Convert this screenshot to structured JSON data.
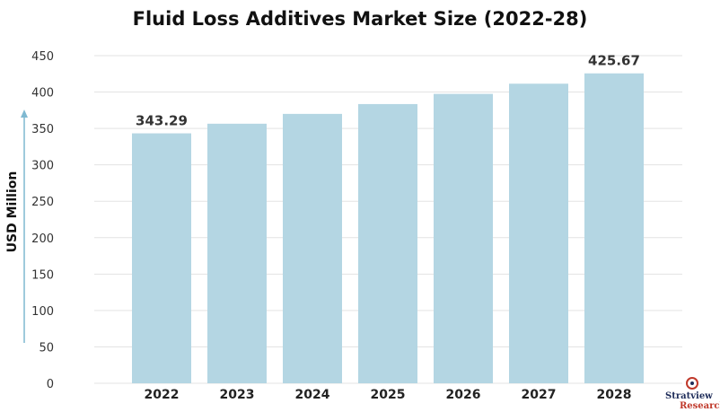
{
  "chart_data": {
    "type": "bar",
    "title": "Fluid Loss Additives Market Size (2022-28)",
    "xlabel": "",
    "ylabel": "USD Million",
    "categories": [
      "2022",
      "2023",
      "2024",
      "2025",
      "2026",
      "2027",
      "2028"
    ],
    "values": [
      343.29,
      356.5,
      370.0,
      383.5,
      397.5,
      411.5,
      425.67
    ],
    "data_labels": [
      "343.29",
      "",
      "",
      "",
      "",
      "",
      "425.67"
    ],
    "ylim": [
      0,
      450
    ],
    "yticks": [
      "0",
      "50",
      "100",
      "150",
      "200",
      "250",
      "300",
      "350",
      "400",
      "450"
    ],
    "grid": true,
    "bar_color": "#b4d6e3",
    "grid_color": "#e3e3e3"
  },
  "logo": {
    "name": "Stratview",
    "sub": "Research"
  }
}
